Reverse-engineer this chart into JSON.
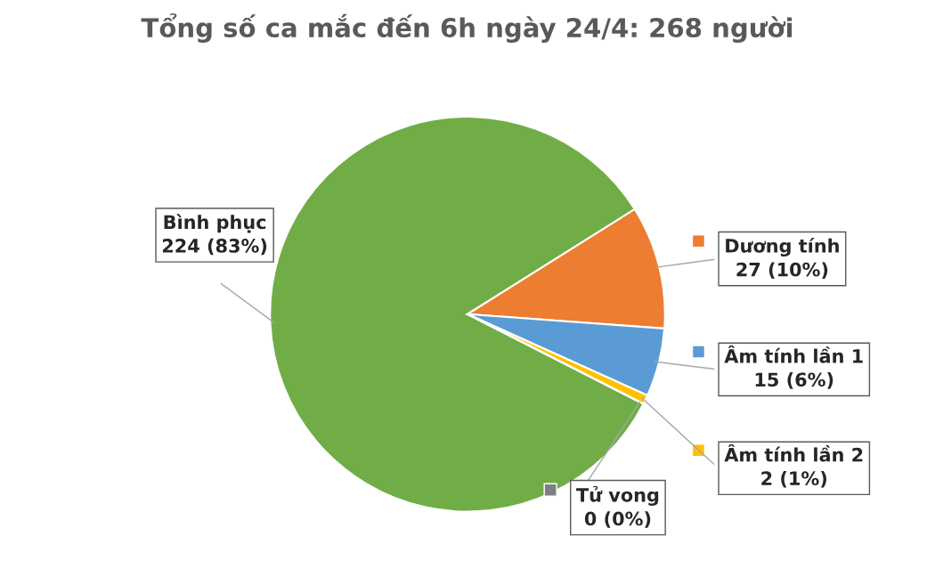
{
  "chart_data": {
    "type": "pie",
    "title": "Tổng số ca mắc đến 6h ngày 24/4: 268 người",
    "categories": [
      "Bình phục",
      "Dương tính",
      "Âm tính lần 1",
      "Âm tính lần 2",
      "Tử vong"
    ],
    "values": [
      224,
      27,
      15,
      2,
      0
    ],
    "value_labels": [
      "224 (83%)",
      "27 (10%)",
      "15 (6%)",
      "2 (1%)",
      "0 (0%)"
    ],
    "colors": [
      "#70ad47",
      "#ed7d31",
      "#5b9bd5",
      "#ffc000",
      "#7f7f7f"
    ],
    "legend": "right"
  }
}
